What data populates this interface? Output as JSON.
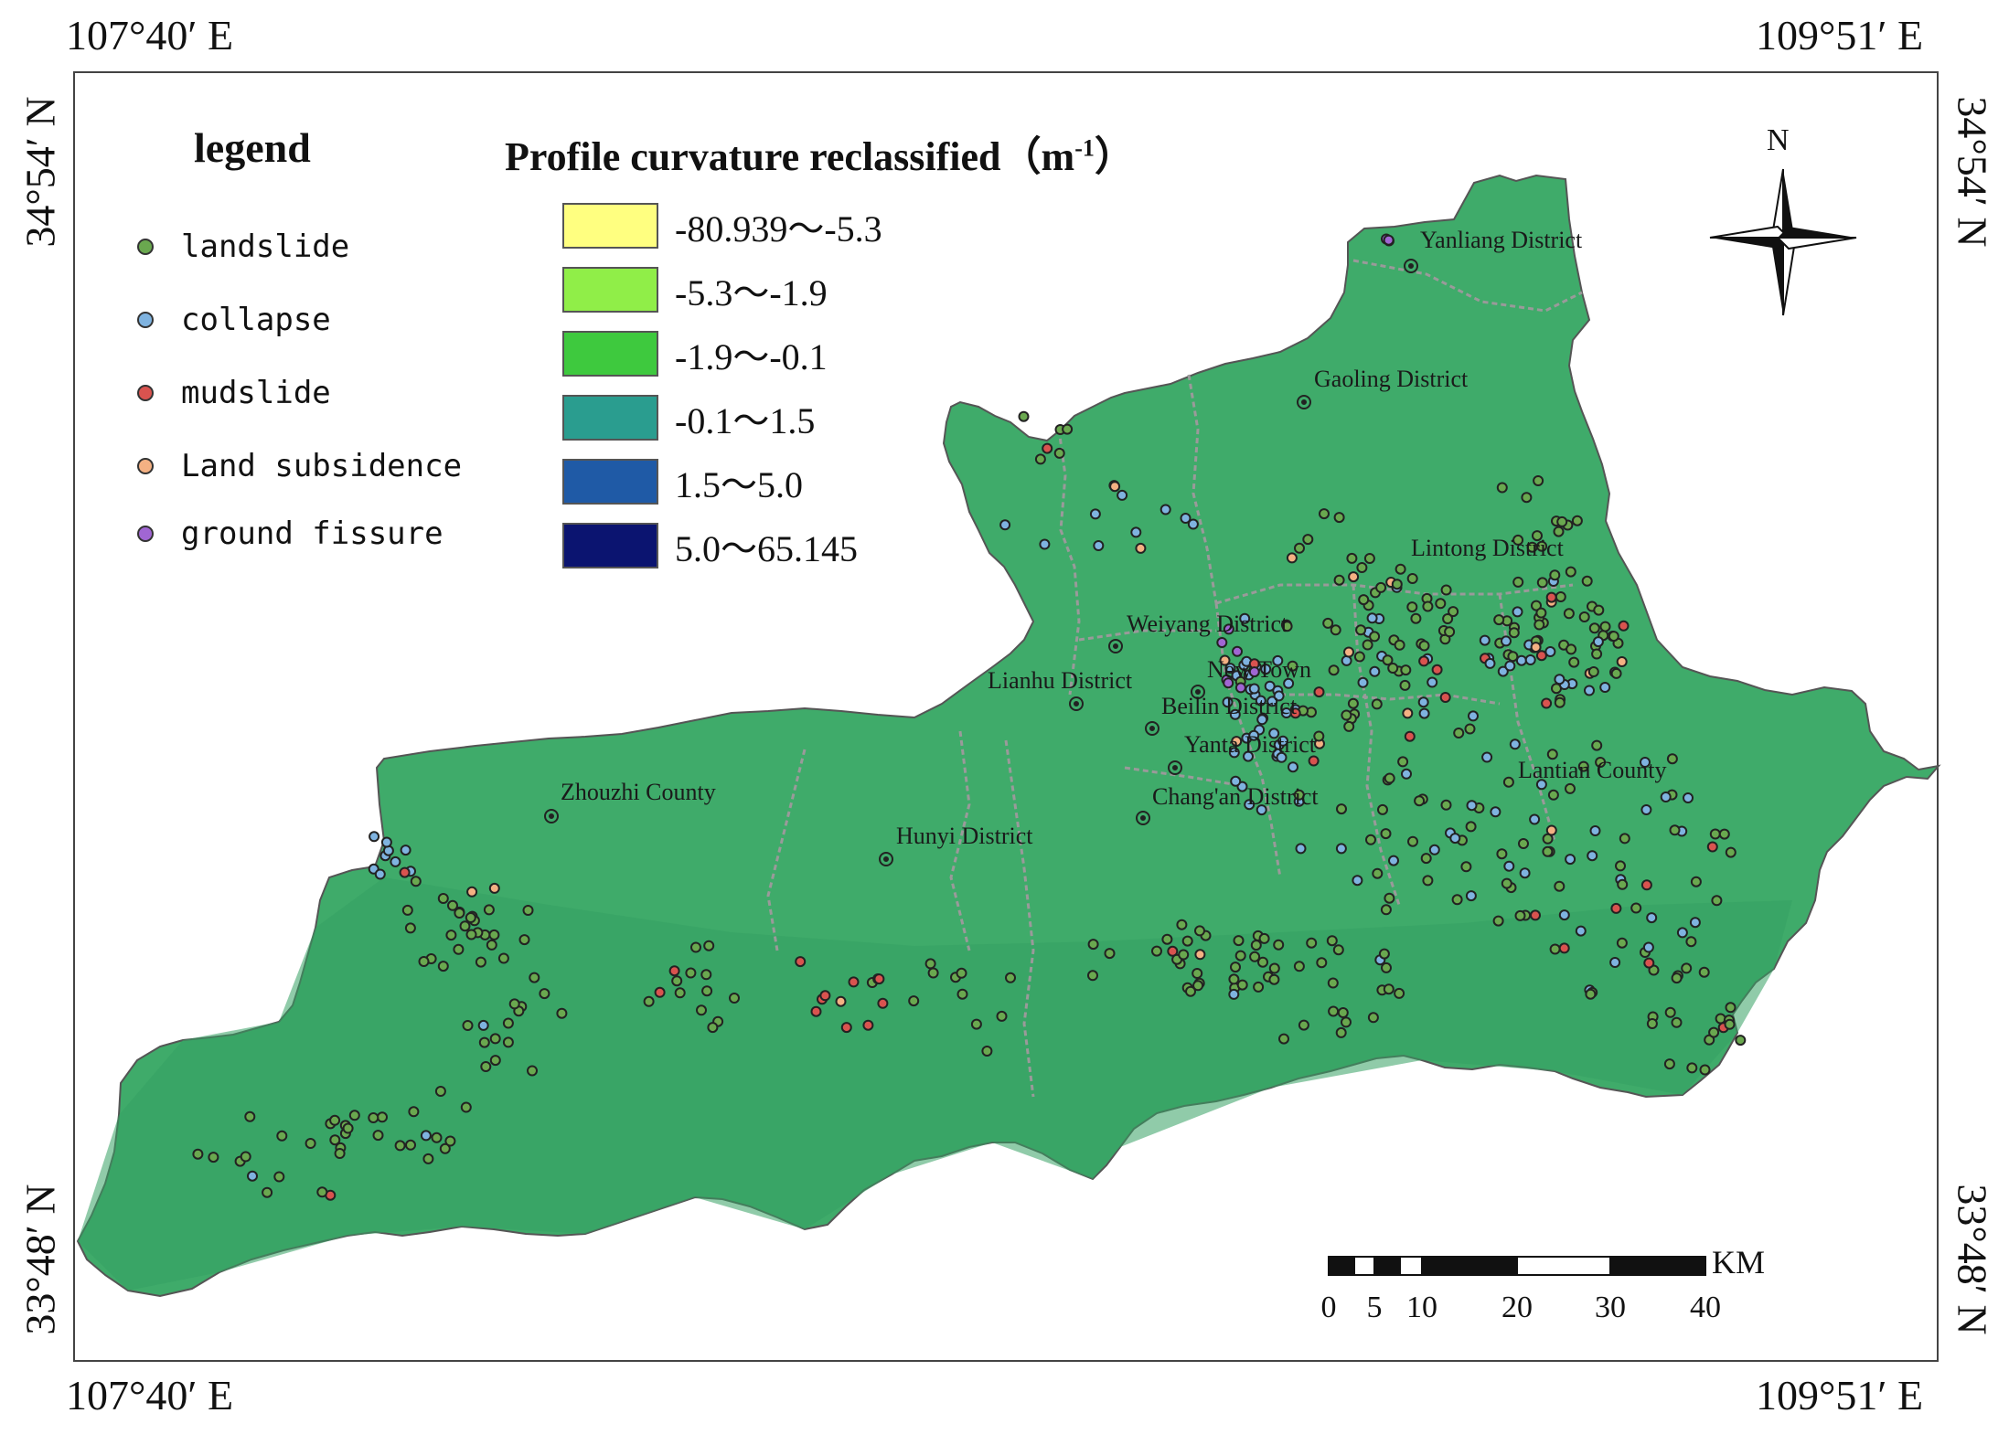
{
  "coords": {
    "top_left": "107°40′ E",
    "top_right": "109°51′ E",
    "bottom_left": "107°40′ E",
    "bottom_right": "109°51′ E",
    "left_top": "34°54′ N",
    "left_bottom": "33°48′ N",
    "right_top": "34°54′ N",
    "right_bottom": "33°48′ N"
  },
  "legend": {
    "title": "legend",
    "items": [
      {
        "label": "landslide",
        "color": "#6aa84f"
      },
      {
        "label": "collapse",
        "color": "#7fb3e0"
      },
      {
        "label": "mudslide",
        "color": "#d9534f"
      },
      {
        "label": "Land subsidence",
        "color": "#f4b183"
      },
      {
        "label": "ground fissure",
        "color": "#a066d3"
      }
    ]
  },
  "curvature": {
    "title": "Profile curvature reclassified（m",
    "title_sup": "-1",
    "title_end": "）",
    "classes": [
      {
        "label": "-80.939～-5.3",
        "color": "#ffff80"
      },
      {
        "label": "-5.3～-1.9",
        "color": "#90ee48"
      },
      {
        "label": "-1.9～-0.1",
        "color": "#3ec93e"
      },
      {
        "label": "-0.1～1.5",
        "color": "#2a9d8f"
      },
      {
        "label": "1.5～5.0",
        "color": "#1f5aa6"
      },
      {
        "label": "5.0～65.145",
        "color": "#0b1470"
      }
    ]
  },
  "map": {
    "land_color": "#3fab6a",
    "boundary_color": "#9a9a9a",
    "places": [
      "Yanliang District",
      "Gaoling District",
      "Lintong District",
      "Weiyang District",
      "New Town",
      "Lianhu District",
      "Beilin District",
      "Yanta District",
      "Chang'an District",
      "Lantian County",
      "Zhouzhi County",
      "Hunyi District"
    ]
  },
  "north_arrow": {
    "label": "N"
  },
  "scale_bar": {
    "unit": "KM",
    "ticks": [
      "0",
      "5",
      "10",
      "20",
      "30",
      "40"
    ]
  }
}
